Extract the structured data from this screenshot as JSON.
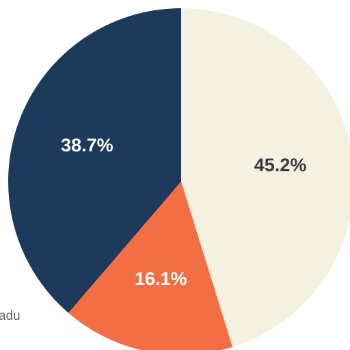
{
  "chart_data": {
    "type": "pie",
    "categories": [
      null,
      null,
      null
    ],
    "values": [
      45.2,
      16.1,
      38.7
    ],
    "value_labels": [
      "45.2%",
      "16.1%",
      "38.7%"
    ],
    "colors": [
      "#f5f1e1",
      "#f26f45",
      "#1e3a5a"
    ],
    "annotations": [
      "adu"
    ]
  }
}
